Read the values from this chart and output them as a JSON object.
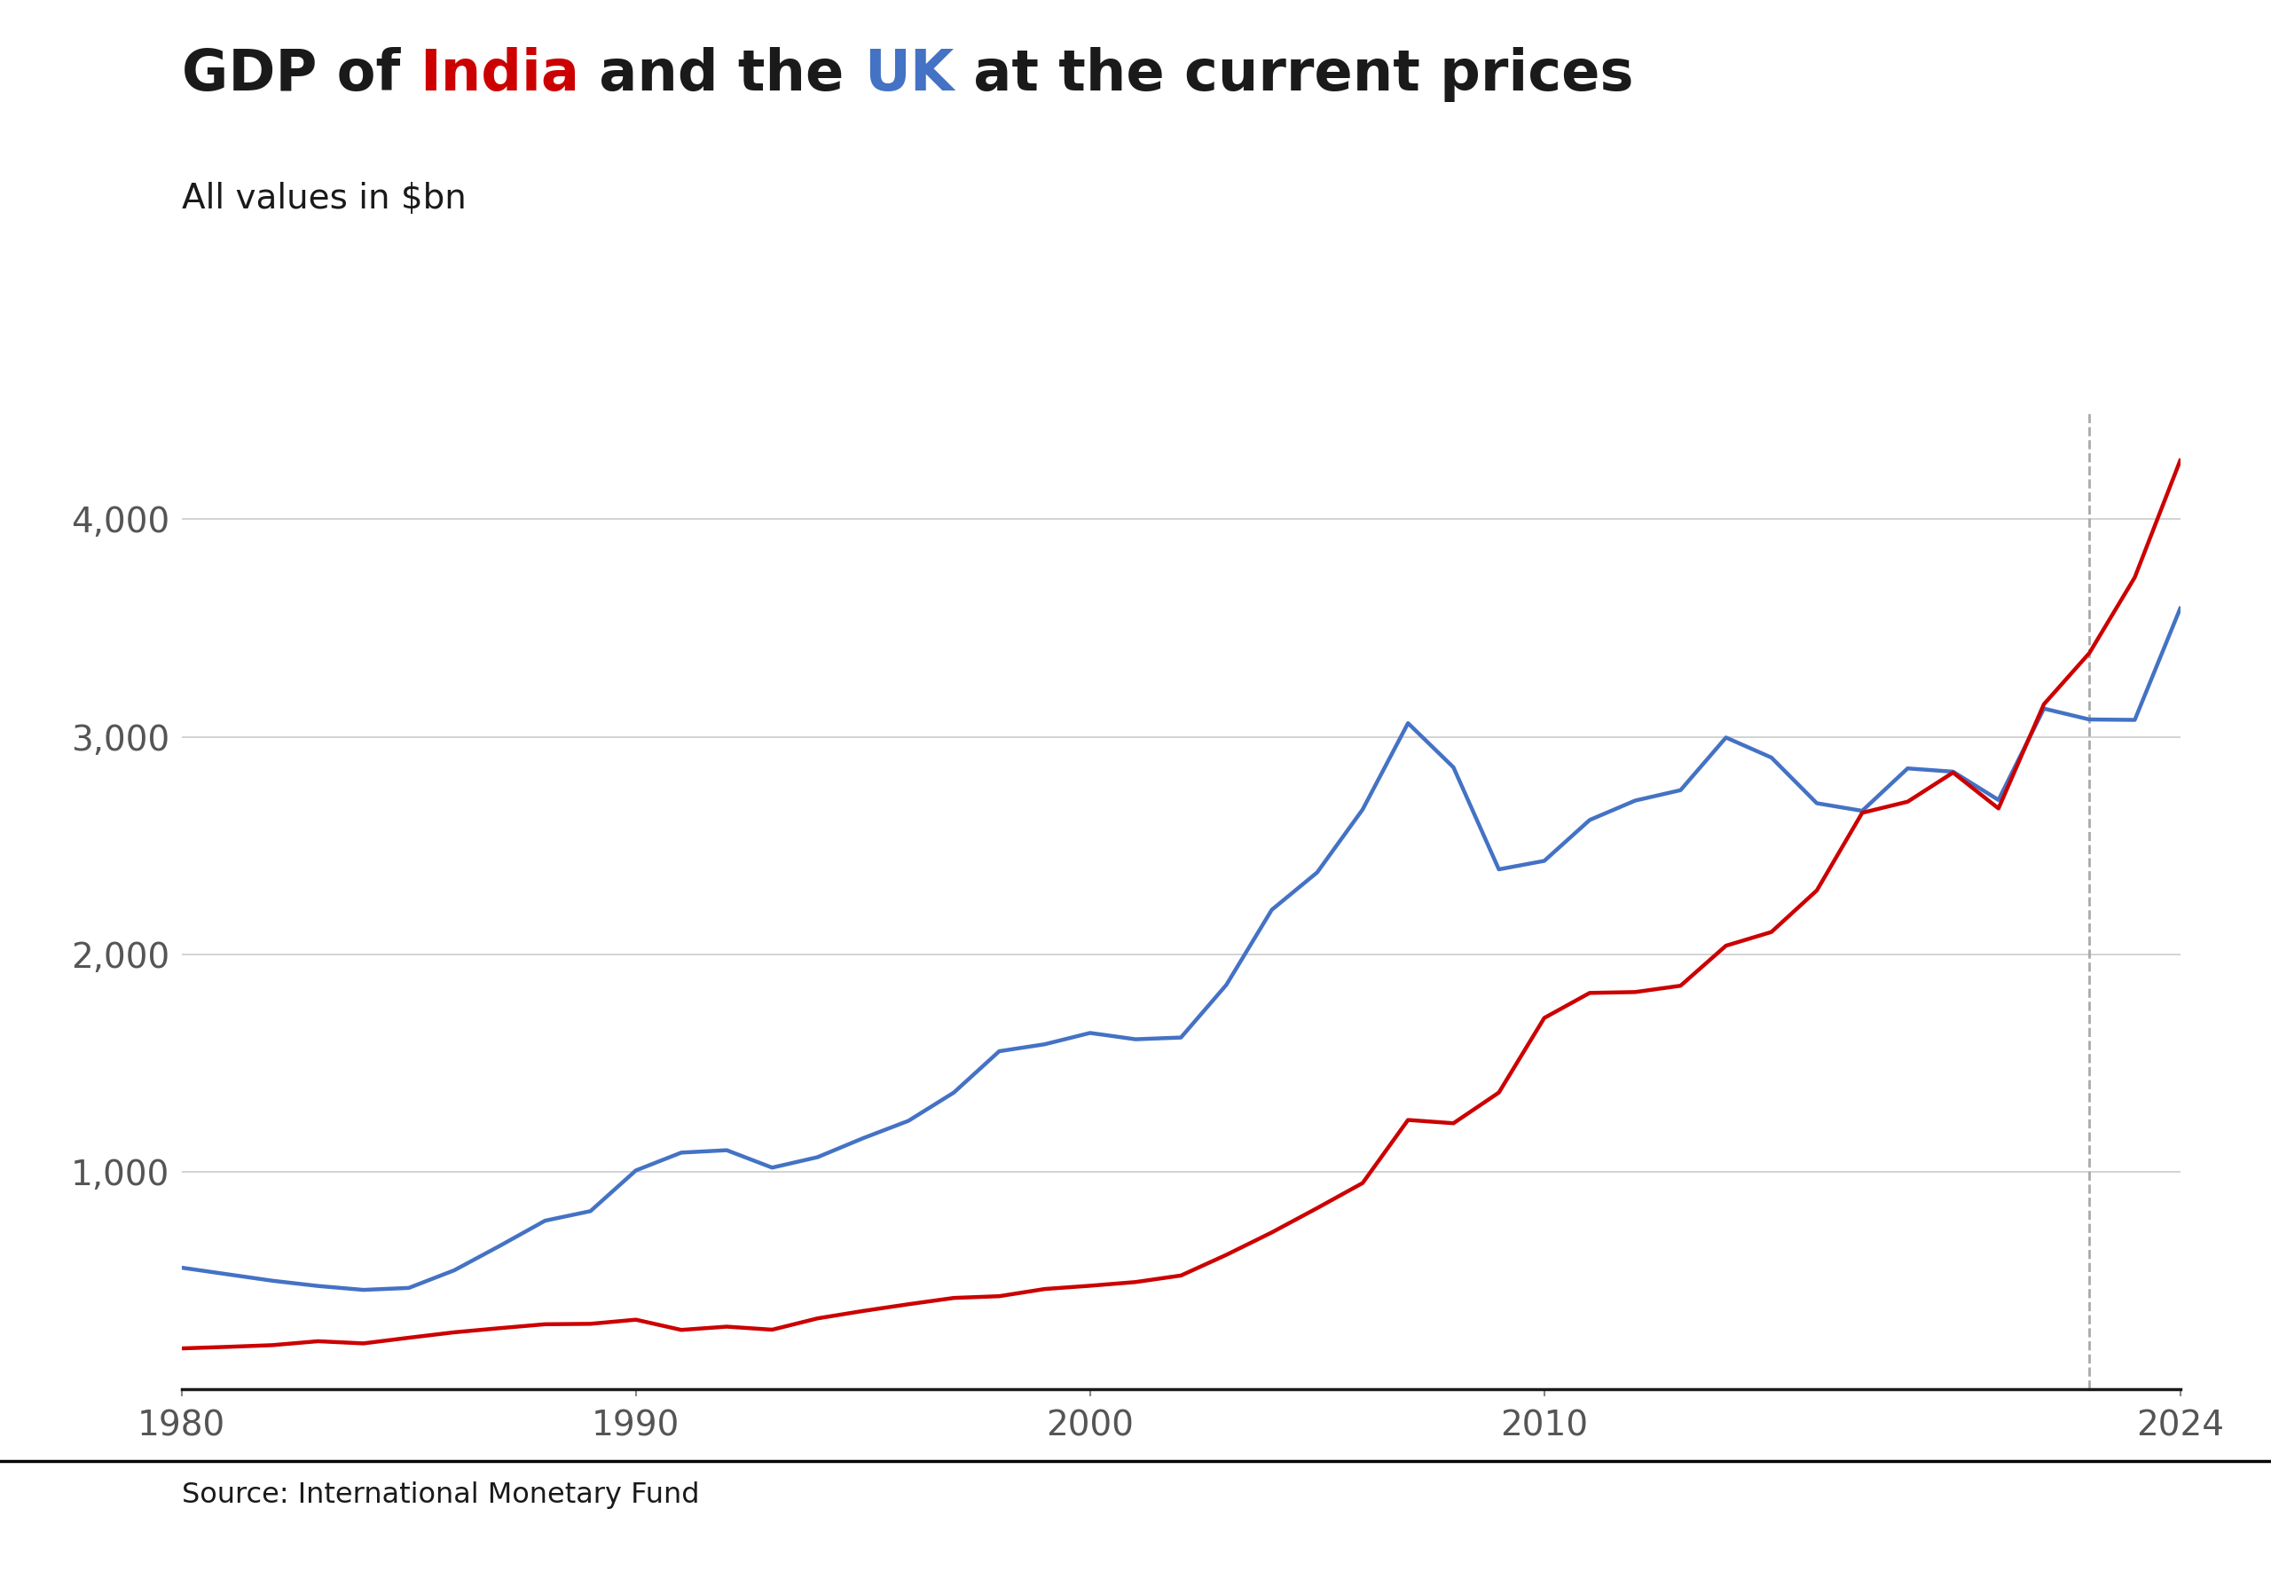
{
  "title_parts": [
    {
      "text": "GDP of ",
      "color": "#1a1a1a"
    },
    {
      "text": "India",
      "color": "#cc0000"
    },
    {
      "text": " and the ",
      "color": "#1a1a1a"
    },
    {
      "text": "UK",
      "color": "#4472c4"
    },
    {
      "text": " at the current prices",
      "color": "#1a1a1a"
    }
  ],
  "subtitle": "All values in $bn",
  "source": "Source: International Monetary Fund",
  "years": [
    1980,
    1981,
    1982,
    1983,
    1984,
    1985,
    1986,
    1987,
    1988,
    1989,
    1990,
    1991,
    1992,
    1993,
    1994,
    1995,
    1996,
    1997,
    1998,
    1999,
    2000,
    2001,
    2002,
    2003,
    2004,
    2005,
    2006,
    2007,
    2008,
    2009,
    2010,
    2011,
    2012,
    2013,
    2014,
    2015,
    2016,
    2017,
    2018,
    2019,
    2020,
    2021,
    2022,
    2023,
    2024
  ],
  "india_gdp": [
    189,
    196,
    204,
    222,
    212,
    238,
    263,
    282,
    300,
    302,
    321,
    274,
    289,
    275,
    327,
    361,
    392,
    421,
    429,
    462,
    477,
    494,
    524,
    619,
    722,
    834,
    949,
    1239,
    1224,
    1365,
    1708,
    1823,
    1827,
    1856,
    2040,
    2103,
    2294,
    2651,
    2702,
    2836,
    2671,
    3150,
    3385,
    3733,
    4270
  ],
  "uk_gdp": [
    560,
    530,
    500,
    476,
    458,
    467,
    548,
    660,
    776,
    820,
    1007,
    1089,
    1100,
    1020,
    1068,
    1155,
    1235,
    1365,
    1555,
    1587,
    1639,
    1610,
    1618,
    1860,
    2205,
    2377,
    2666,
    3063,
    2860,
    2391,
    2430,
    2618,
    2707,
    2755,
    2997,
    2905,
    2695,
    2660,
    2855,
    2840,
    2710,
    3130,
    3080,
    3078,
    3590
  ],
  "dashed_line_year": 2022,
  "india_color": "#cc0000",
  "uk_color": "#4472c4",
  "background_color": "#ffffff",
  "grid_color": "#cccccc",
  "dashed_line_color": "#aaaaaa",
  "ylim": [
    0,
    4500
  ],
  "yticks": [
    1000,
    2000,
    3000,
    4000
  ],
  "ytick_labels": [
    "1,000",
    "2,000",
    "3,000",
    "4,000"
  ],
  "xtick_positions": [
    1980,
    1990,
    2000,
    2010,
    2024
  ],
  "title_fontsize": 46,
  "subtitle_fontsize": 28,
  "tick_fontsize": 28,
  "source_fontsize": 23,
  "line_width": 3.2
}
